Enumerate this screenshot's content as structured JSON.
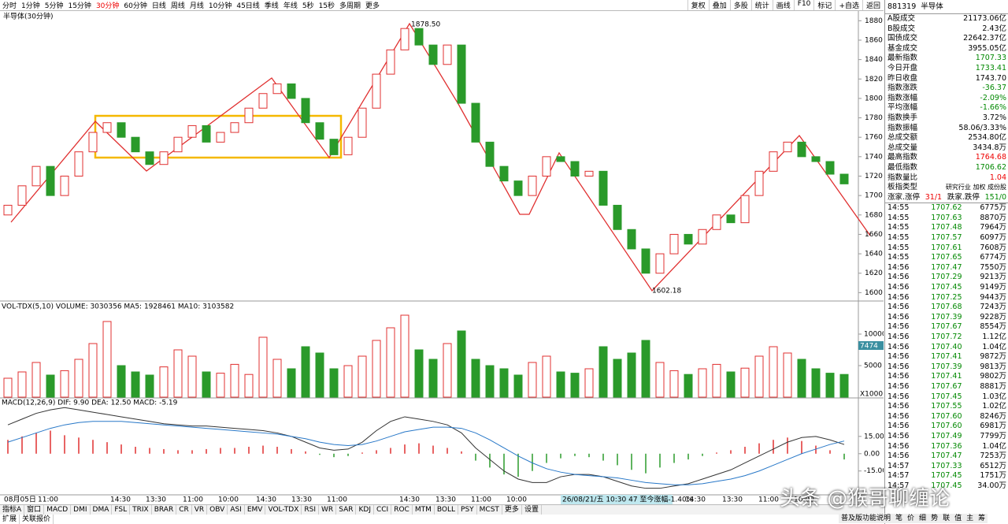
{
  "toolbar": {
    "periods": [
      "分时",
      "1分钟",
      "5分钟",
      "15分钟",
      "30分钟",
      "60分钟",
      "日线",
      "周线",
      "月线",
      "10分钟",
      "45日线",
      "季线",
      "年线",
      "5秒",
      "15秒",
      "多周期",
      "更多"
    ],
    "tools": [
      "复权",
      "叠加",
      "多股",
      "统计",
      "画线",
      "F10",
      "标记",
      "+自选",
      "返回"
    ]
  },
  "price_chart": {
    "type": "candlestick",
    "title": "半导体(30分钟)",
    "high_label": "1878.50",
    "low_label": "1602.18",
    "candles": [
      [
        1680,
        1690
      ],
      [
        1690,
        1710
      ],
      [
        1710,
        1730
      ],
      [
        1730,
        1700
      ],
      [
        1700,
        1720
      ],
      [
        1720,
        1745
      ],
      [
        1745,
        1765
      ],
      [
        1765,
        1775
      ],
      [
        1775,
        1760
      ],
      [
        1760,
        1745
      ],
      [
        1745,
        1732
      ],
      [
        1732,
        1745
      ],
      [
        1745,
        1760
      ],
      [
        1760,
        1772
      ],
      [
        1772,
        1755
      ],
      [
        1755,
        1765
      ],
      [
        1765,
        1775
      ],
      [
        1775,
        1790
      ],
      [
        1790,
        1805
      ],
      [
        1805,
        1815
      ],
      [
        1815,
        1800
      ],
      [
        1800,
        1775
      ],
      [
        1775,
        1758
      ],
      [
        1758,
        1742
      ],
      [
        1742,
        1760
      ],
      [
        1760,
        1790
      ],
      [
        1790,
        1825
      ],
      [
        1825,
        1850
      ],
      [
        1850,
        1872
      ],
      [
        1872,
        1855
      ],
      [
        1855,
        1835
      ],
      [
        1835,
        1855
      ],
      [
        1855,
        1795
      ],
      [
        1795,
        1755
      ],
      [
        1755,
        1730
      ],
      [
        1730,
        1715
      ],
      [
        1715,
        1700
      ],
      [
        1700,
        1720
      ],
      [
        1720,
        1740
      ],
      [
        1740,
        1735
      ],
      [
        1735,
        1720
      ],
      [
        1720,
        1725
      ],
      [
        1725,
        1690
      ],
      [
        1690,
        1665
      ],
      [
        1665,
        1645
      ],
      [
        1645,
        1620
      ],
      [
        1620,
        1640
      ],
      [
        1640,
        1660
      ],
      [
        1660,
        1650
      ],
      [
        1650,
        1665
      ],
      [
        1665,
        1680
      ],
      [
        1680,
        1672
      ],
      [
        1672,
        1700
      ],
      [
        1700,
        1725
      ],
      [
        1725,
        1745
      ],
      [
        1745,
        1755
      ],
      [
        1755,
        1740
      ],
      [
        1740,
        1735
      ],
      [
        1735,
        1722
      ],
      [
        1722,
        1712
      ]
    ],
    "ylim": [
      1593,
      1890
    ],
    "yticks": [
      1600,
      1620,
      1640,
      1660,
      1680,
      1700,
      1720,
      1740,
      1760,
      1780,
      1800,
      1820,
      1840,
      1860,
      1880
    ]
  },
  "volume_chart": {
    "type": "bar",
    "header": "VOL-TDX(5,10) VOLUME: 3030356 MA5: 1928461 MA10: 3103582",
    "current_label": "7474",
    "unit_label": "X1000",
    "values": [
      3000,
      4000,
      5500,
      3500,
      4200,
      6000,
      8500,
      12000,
      5000,
      4000,
      3500,
      4800,
      7500,
      6500,
      4000,
      3800,
      5200,
      3600,
      9500,
      6000,
      4500,
      8000,
      7000,
      4500,
      5000,
      6500,
      9000,
      11000,
      13000,
      7500,
      6000,
      8500,
      10500,
      6000,
      5000,
      4500,
      3500,
      5500,
      6500,
      4000,
      3800,
      4500,
      8000,
      6000,
      7000,
      9000,
      5500,
      4200,
      3600,
      4500,
      5200,
      4000,
      4600,
      6500,
      8000,
      7000,
      6000,
      4500,
      3800,
      3600
    ],
    "ylim": [
      0,
      15000
    ],
    "yticks": [
      5000,
      10000
    ]
  },
  "macd_chart": {
    "type": "macd",
    "header": "MACD(12,26,9) DIF: 9.90 DEA: 12.50 MACD: -5.19",
    "hist": [
      12,
      15,
      18,
      20,
      16,
      14,
      12,
      10,
      8,
      6,
      5,
      4,
      3,
      3,
      4,
      5,
      5,
      6,
      7,
      6,
      4,
      2,
      -1,
      -3,
      -2,
      1,
      3,
      5,
      8,
      9,
      7,
      5,
      2,
      -6,
      -12,
      -18,
      -20,
      -15,
      -8,
      -4,
      -2,
      -3,
      -6,
      -10,
      -14,
      -17,
      -12,
      -8,
      -5,
      -2,
      1,
      3,
      6,
      9,
      12,
      14,
      11,
      7,
      3,
      -5
    ],
    "dif": [
      25,
      30,
      35,
      38,
      40,
      38,
      36,
      34,
      32,
      30,
      28,
      26,
      25,
      24,
      24,
      23,
      22,
      21,
      20,
      18,
      15,
      10,
      5,
      3,
      4,
      10,
      20,
      28,
      32,
      30,
      28,
      25,
      18,
      5,
      -5,
      -15,
      -22,
      -25,
      -25,
      -20,
      -18,
      -18,
      -20,
      -24,
      -28,
      -30,
      -30,
      -28,
      -26,
      -22,
      -18,
      -14,
      -8,
      -2,
      4,
      10,
      14,
      15,
      12,
      8
    ],
    "dea": [
      10,
      14,
      18,
      22,
      25,
      27,
      28,
      28,
      28,
      27,
      26,
      25,
      24,
      23,
      22,
      21,
      20,
      19,
      18,
      17,
      15,
      13,
      10,
      8,
      7,
      8,
      11,
      15,
      19,
      21,
      23,
      23,
      22,
      18,
      12,
      5,
      -2,
      -8,
      -13,
      -16,
      -18,
      -19,
      -20,
      -21,
      -23,
      -25,
      -26,
      -27,
      -27,
      -26,
      -24,
      -22,
      -19,
      -15,
      -10,
      -5,
      0,
      4,
      8,
      11
    ],
    "ylim": [
      -35,
      47
    ],
    "yticks": [
      {
        "value": 15,
        "label": "15.00"
      },
      {
        "value": 0,
        "label": "0.00"
      },
      {
        "value": -15,
        "label": "-15.00"
      }
    ]
  },
  "time_axis": {
    "labels": [
      "08月05日",
      "11:00",
      "14:30",
      "13:30",
      "11:00",
      "10:00",
      "14:30",
      "13:30",
      "11:00",
      "14:30",
      "13:30",
      "11:00",
      "10:00",
      "14:30",
      "13:30",
      "11:00",
      "10:00"
    ],
    "info": "26/08/21/五 10:30 47 至今涨幅-1.40%"
  },
  "bottom_tabs": [
    "指标A",
    "窗口",
    "MACD",
    "DMI",
    "DMA",
    "FSL",
    "TRIX",
    "BRAR",
    "CR",
    "VR",
    "OBV",
    "ASI",
    "EMV",
    "VOL-TDX",
    "RSI",
    "WR",
    "SAR",
    "KDJ",
    "CCI",
    "ROC",
    "MTM",
    "BOLL",
    "PSY",
    "MCST",
    "更多",
    "设置"
  ],
  "bottom_row": [
    "扩展",
    "关联报价"
  ],
  "right_footer": {
    "help": "普及版功能说明",
    "buttons": [
      "笔",
      "价",
      "细",
      "势",
      "联",
      "值",
      "主",
      "筹"
    ]
  },
  "quote_panel": {
    "code": "881319",
    "name": "半导体",
    "stats": [
      {
        "label": "A股成交",
        "value": "21173.06亿",
        "color": "#000"
      },
      {
        "label": "B股成交",
        "value": "2.43亿",
        "color": "#000"
      },
      {
        "label": "国债成交",
        "value": "22642.37亿",
        "color": "#000"
      },
      {
        "label": "基金成交",
        "value": "3955.05亿",
        "color": "#000"
      },
      {
        "label": "最新指数",
        "value": "1707.33",
        "color": "#080"
      },
      {
        "label": "今日开盘",
        "value": "1733.41",
        "color": "#080"
      },
      {
        "label": "昨日收盘",
        "value": "1743.70",
        "color": "#000"
      },
      {
        "label": "指数涨跌",
        "value": "-36.37",
        "color": "#080"
      },
      {
        "label": "指数涨幅",
        "value": "-2.09%",
        "color": "#080"
      },
      {
        "label": "平均涨幅",
        "value": "-1.66%",
        "color": "#080"
      },
      {
        "label": "指数换手",
        "value": "3.72%",
        "color": "#000"
      },
      {
        "label": "指数振幅",
        "value": "58.06/3.33%",
        "color": "#000"
      },
      {
        "label": "总成交额",
        "value": "2534.80亿",
        "color": "#000"
      },
      {
        "label": "总成交量",
        "value": "3434.8万",
        "color": "#000"
      },
      {
        "label": "最高指数",
        "value": "1764.68",
        "color": "#e00"
      },
      {
        "label": "最低指数",
        "value": "1706.62",
        "color": "#080"
      },
      {
        "label": "指数量比",
        "value": "1.04",
        "color": "#e00"
      }
    ],
    "board": {
      "label": "板指类型",
      "value": "研究行业 加权 成份股"
    },
    "breadth": {
      "up_label": "涨家.涨停",
      "up": "31/1",
      "down_label": "跌家.跌停",
      "down": "151/0"
    },
    "ticks": [
      [
        "14:55",
        "1707.62",
        "6775万"
      ],
      [
        "14:55",
        "1707.63",
        "8870万"
      ],
      [
        "14:55",
        "1707.48",
        "7964万"
      ],
      [
        "14:55",
        "1707.57",
        "6097万"
      ],
      [
        "14:55",
        "1707.61",
        "7608万"
      ],
      [
        "14:55",
        "1707.65",
        "6774万"
      ],
      [
        "14:56",
        "1707.47",
        "7550万"
      ],
      [
        "14:56",
        "1707.29",
        "9213万"
      ],
      [
        "14:56",
        "1707.45",
        "9149万"
      ],
      [
        "14:56",
        "1707.25",
        "9443万"
      ],
      [
        "14:56",
        "1707.68",
        "7243万"
      ],
      [
        "14:56",
        "1707.39",
        "9228万"
      ],
      [
        "14:56",
        "1707.67",
        "8554万"
      ],
      [
        "14:56",
        "1707.72",
        "1.12亿"
      ],
      [
        "14:56",
        "1707.40",
        "1.04亿"
      ],
      [
        "14:56",
        "1707.41",
        "9872万"
      ],
      [
        "14:56",
        "1707.39",
        "9813万"
      ],
      [
        "14:56",
        "1707.41",
        "9802万"
      ],
      [
        "14:56",
        "1707.67",
        "8881万"
      ],
      [
        "14:56",
        "1707.45",
        "1.03亿"
      ],
      [
        "14:56",
        "1707.55",
        "1.02亿"
      ],
      [
        "14:56",
        "1707.60",
        "8246万"
      ],
      [
        "14:56",
        "1707.60",
        "6981万"
      ],
      [
        "14:56",
        "1707.49",
        "7799万"
      ],
      [
        "14:56",
        "1707.36",
        "1.04亿"
      ],
      [
        "14:56",
        "1707.47",
        "7253万"
      ],
      [
        "14:57",
        "1707.33",
        "6512万"
      ],
      [
        "14:57",
        "1707.45",
        "1751万"
      ],
      [
        "14:57",
        "1707.45",
        "34.00万"
      ]
    ]
  },
  "watermark": "头条 @猴哥聊缠论"
}
